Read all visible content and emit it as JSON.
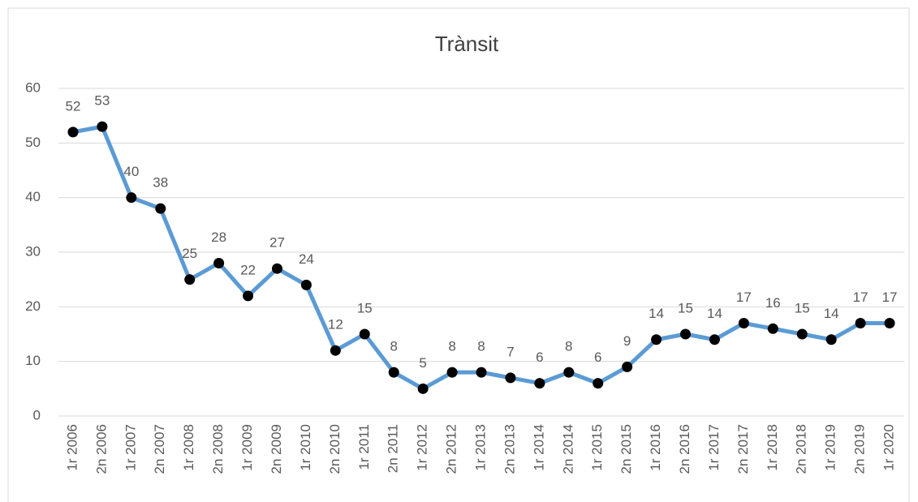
{
  "chart_data": {
    "type": "line",
    "title": "Trànsit",
    "categories": [
      "1r 2006",
      "2n 2006",
      "1r 2007",
      "2n 2007",
      "1r 2008",
      "2n 2008",
      "1r 2009",
      "2n 2009",
      "1r 2010",
      "2n 2010",
      "1r 2011",
      "2n 2011",
      "1r 2012",
      "2n 2012",
      "1r 2013",
      "2n 2013",
      "1r 2014",
      "2n 2014",
      "1r 2015",
      "2n 2015",
      "1r 2016",
      "2n 2016",
      "1r 2017",
      "2n 2017",
      "1r 2018",
      "2n 2018",
      "1r 2019",
      "2n 2019",
      "1r 2020"
    ],
    "values": [
      52,
      53,
      40,
      38,
      25,
      28,
      22,
      27,
      24,
      12,
      15,
      8,
      5,
      8,
      8,
      7,
      6,
      8,
      6,
      9,
      14,
      15,
      14,
      17,
      16,
      15,
      14,
      17,
      17
    ],
    "color": "#5b9bd5",
    "marker_color": "#000000",
    "ylim": [
      0,
      60
    ],
    "yticks": [
      0,
      10,
      20,
      30,
      40,
      50,
      60
    ],
    "grid": true
  }
}
